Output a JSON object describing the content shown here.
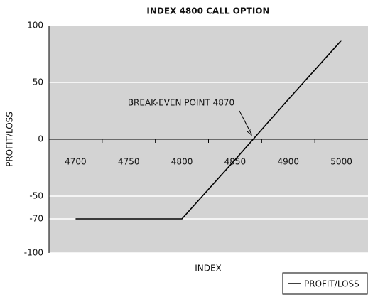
{
  "chart_data": {
    "type": "line",
    "title": "INDEX 4800 CALL OPTION",
    "x_label": "INDEX",
    "y_label": "PROFIT/LOSS",
    "annotation": "BREAK-EVEN POINT 4870",
    "categories": [
      "4700",
      "4750",
      "4800",
      "4850",
      "4900",
      "5000"
    ],
    "series": [
      {
        "name": "PROFIT/LOSS",
        "color": "#000000",
        "values": [
          -70,
          -70,
          -70,
          -18,
          35,
          87
        ]
      }
    ],
    "ylim": [
      -100,
      100
    ],
    "yticks": [
      -100,
      -70,
      -50,
      0,
      50,
      100
    ],
    "grid": true,
    "legend": "bottom-right"
  }
}
